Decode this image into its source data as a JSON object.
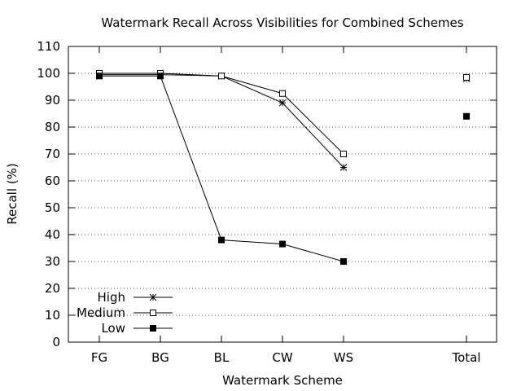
{
  "chart_data": {
    "type": "line",
    "title": "Watermark Recall Across Visibilities for Combined Schemes",
    "xlabel": "Watermark Scheme",
    "ylabel": "Recall (%)",
    "categories": [
      "FG",
      "BG",
      "BL",
      "CW",
      "WS",
      "Total"
    ],
    "ylim": [
      0,
      110
    ],
    "yticks": [
      0,
      10,
      20,
      30,
      40,
      50,
      60,
      70,
      80,
      90,
      100,
      110
    ],
    "grid": true,
    "legend_position": "bottom-left",
    "series": [
      {
        "name": "High",
        "marker": "asterisk",
        "values": [
          99.5,
          99.5,
          99,
          89,
          65,
          98
        ]
      },
      {
        "name": "Medium",
        "marker": "open-square",
        "values": [
          100,
          100,
          99,
          92.5,
          70,
          98.5
        ]
      },
      {
        "name": "Low",
        "marker": "filled-square",
        "values": [
          99,
          99,
          38,
          36.5,
          30,
          84
        ]
      }
    ]
  }
}
